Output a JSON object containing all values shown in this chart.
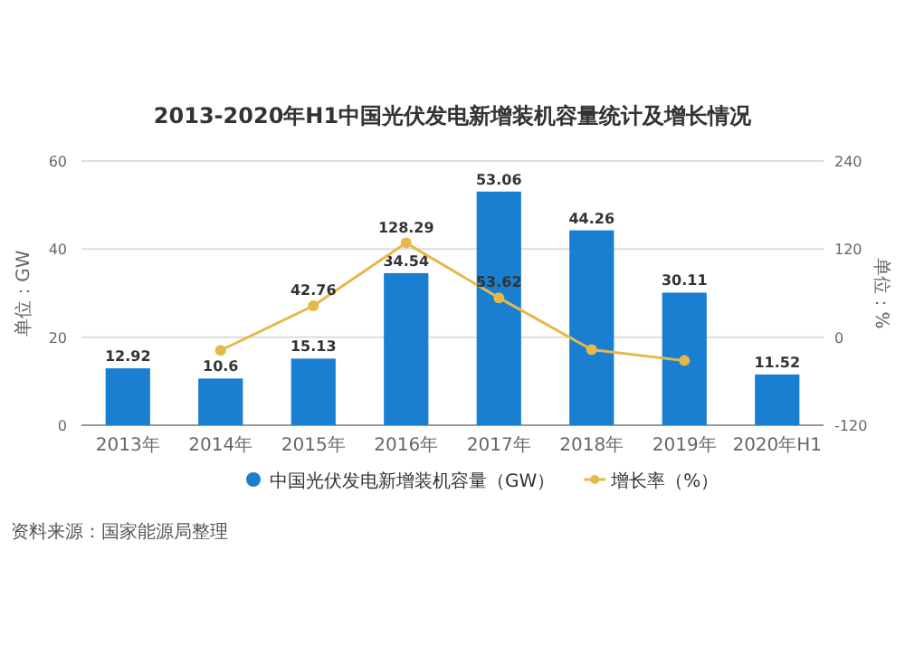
{
  "chart_data": {
    "type": "bar",
    "title": "2013-2020年H1中国光伏发电新增装机容量统计及增长情况",
    "categories": [
      "2013年",
      "2014年",
      "2015年",
      "2016年",
      "2017年",
      "2018年",
      "2019年",
      "2020年H1"
    ],
    "series": [
      {
        "name": "中国光伏发电新增装机容量（GW）",
        "color": "#1a7fd0",
        "values": [
          12.92,
          10.6,
          15.13,
          34.54,
          53.06,
          44.26,
          30.11,
          11.52
        ],
        "value_labels": [
          "12.92",
          "10.6",
          "15.13",
          "34.54",
          "53.06",
          "44.26",
          "30.11",
          "11.52"
        ]
      },
      {
        "name": "增长率（%）",
        "type": "line",
        "axis": "y2",
        "color": "#e6b84a",
        "marker": "circle",
        "values": [
          null,
          -18,
          42.76,
          128.29,
          53.62,
          -17,
          -32,
          null
        ],
        "value_labels": [
          null,
          null,
          "42.76",
          "128.29",
          "53.62",
          null,
          null,
          null
        ]
      }
    ],
    "ylabel": "单位：GW",
    "y2label": "单位：%",
    "ylim": [
      0,
      60
    ],
    "yticks": [
      0,
      20,
      40,
      60
    ],
    "y2lim": [
      -120,
      240
    ],
    "y2ticks": [
      -120,
      0,
      120,
      240
    ],
    "grid": "y",
    "legend": "bottom",
    "annotations": [
      "资料来源：国家能源局整理"
    ]
  }
}
